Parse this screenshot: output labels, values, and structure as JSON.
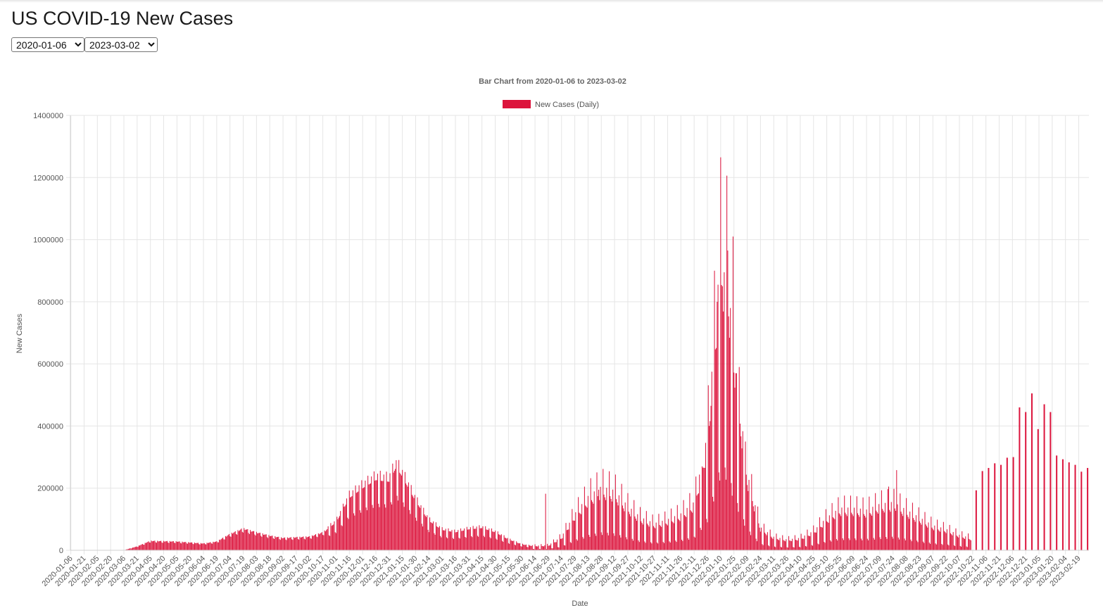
{
  "page": {
    "title": "US COVID-19 New Cases",
    "start_select": {
      "value": "2020-01-06"
    },
    "end_select": {
      "value": "2023-03-02"
    }
  },
  "colors": {
    "bar": "#dc143c",
    "grid": "#e5e5e5",
    "axis_text": "#555555"
  },
  "chart_data": {
    "type": "bar",
    "title": "Bar Chart from 2020-01-06 to 2023-03-02",
    "xlabel": "Date",
    "ylabel": "New Cases",
    "legend": {
      "label": "New Cases (Daily)",
      "position": "top-center"
    },
    "grid": true,
    "ylim": [
      0,
      1400000
    ],
    "y_ticks": [
      0,
      200000,
      400000,
      600000,
      800000,
      1000000,
      1200000,
      1400000
    ],
    "x_range": [
      "2020-01-06",
      "2023-03-02"
    ],
    "x_tick_labels": [
      "2020-01-06",
      "2020-01-21",
      "2020-02-05",
      "2020-02-20",
      "2020-03-06",
      "2020-03-21",
      "2020-04-05",
      "2020-04-20",
      "2020-05-05",
      "2020-05-20",
      "2020-06-04",
      "2020-06-19",
      "2020-07-04",
      "2020-07-19",
      "2020-08-03",
      "2020-08-18",
      "2020-09-02",
      "2020-09-17",
      "2020-10-02",
      "2020-10-17",
      "2020-11-01",
      "2020-11-16",
      "2020-12-01",
      "2020-12-16",
      "2020-12-31",
      "2021-01-15",
      "2021-01-30",
      "2021-02-14",
      "2021-03-01",
      "2021-03-16",
      "2021-03-31",
      "2021-04-15",
      "2021-04-30",
      "2021-05-15",
      "2021-05-30",
      "2021-06-14",
      "2021-06-29",
      "2021-07-14",
      "2021-07-29",
      "2021-08-13",
      "2021-08-28",
      "2021-09-12",
      "2021-09-27",
      "2021-10-12",
      "2021-10-27",
      "2021-11-11",
      "2021-11-26",
      "2021-12-11",
      "2021-12-26",
      "2022-01-10",
      "2022-01-25",
      "2022-02-09",
      "2022-02-24",
      "2022-03-11",
      "2022-03-26",
      "2022-04-10",
      "2022-04-25",
      "2022-05-10",
      "2022-05-25",
      "2022-06-09",
      "2022-06-24",
      "2022-07-09",
      "2022-07-24",
      "2022-08-08",
      "2022-08-23",
      "2022-09-07",
      "2022-09-22",
      "2022-10-07",
      "2022-10-22",
      "2022-11-06",
      "2022-11-21",
      "2022-12-06",
      "2022-12-21",
      "2023-01-05",
      "2023-01-20",
      "2023-02-04",
      "2023-02-19"
    ],
    "daily_trend": [
      [
        "2020-01-06",
        0
      ],
      [
        "2020-03-06",
        300
      ],
      [
        "2020-03-21",
        12000
      ],
      [
        "2020-03-28",
        20000
      ],
      [
        "2020-04-05",
        29000
      ],
      [
        "2020-04-20",
        28000
      ],
      [
        "2020-05-05",
        27000
      ],
      [
        "2020-05-20",
        24000
      ],
      [
        "2020-06-04",
        21000
      ],
      [
        "2020-06-19",
        27000
      ],
      [
        "2020-07-04",
        50000
      ],
      [
        "2020-07-19",
        67000
      ],
      [
        "2020-08-03",
        55000
      ],
      [
        "2020-08-18",
        45000
      ],
      [
        "2020-09-02",
        38000
      ],
      [
        "2020-09-17",
        40000
      ],
      [
        "2020-10-02",
        42000
      ],
      [
        "2020-10-17",
        55000
      ],
      [
        "2020-11-01",
        85000
      ],
      [
        "2020-11-16",
        160000
      ],
      [
        "2020-12-01",
        190000
      ],
      [
        "2020-12-16",
        215000
      ],
      [
        "2020-12-31",
        210000
      ],
      [
        "2021-01-08",
        255000
      ],
      [
        "2021-01-15",
        225000
      ],
      [
        "2021-01-30",
        150000
      ],
      [
        "2021-02-14",
        90000
      ],
      [
        "2021-03-01",
        62000
      ],
      [
        "2021-03-16",
        55000
      ],
      [
        "2021-03-31",
        64000
      ],
      [
        "2021-04-15",
        68000
      ],
      [
        "2021-04-30",
        55000
      ],
      [
        "2021-05-15",
        33000
      ],
      [
        "2021-05-30",
        18000
      ],
      [
        "2021-06-14",
        12000
      ],
      [
        "2021-06-29",
        13000
      ],
      [
        "2021-07-14",
        35000
      ],
      [
        "2021-07-29",
        95000
      ],
      [
        "2021-08-13",
        140000
      ],
      [
        "2021-08-28",
        165000
      ],
      [
        "2021-09-12",
        155000
      ],
      [
        "2021-09-27",
        115000
      ],
      [
        "2021-10-12",
        85000
      ],
      [
        "2021-10-27",
        70000
      ],
      [
        "2021-11-11",
        80000
      ],
      [
        "2021-11-26",
        95000
      ],
      [
        "2021-12-11",
        125000
      ],
      [
        "2021-12-26",
        300000
      ],
      [
        "2022-01-10",
        780000
      ],
      [
        "2022-01-18",
        750000
      ],
      [
        "2022-01-25",
        520000
      ],
      [
        "2022-02-09",
        200000
      ],
      [
        "2022-02-24",
        60000
      ],
      [
        "2022-03-11",
        35000
      ],
      [
        "2022-03-26",
        28000
      ],
      [
        "2022-04-10",
        32000
      ],
      [
        "2022-04-25",
        50000
      ],
      [
        "2022-05-10",
        85000
      ],
      [
        "2022-05-25",
        110000
      ],
      [
        "2022-06-09",
        110000
      ],
      [
        "2022-06-24",
        105000
      ],
      [
        "2022-07-09",
        120000
      ],
      [
        "2022-07-24",
        125000
      ],
      [
        "2022-08-08",
        105000
      ],
      [
        "2022-08-23",
        85000
      ],
      [
        "2022-09-07",
        65000
      ],
      [
        "2022-09-22",
        55000
      ],
      [
        "2022-10-07",
        40000
      ],
      [
        "2022-10-20",
        32000
      ]
    ],
    "spikes": [
      [
        "2020-11-10",
        140000
      ],
      [
        "2021-01-08",
        290000
      ],
      [
        "2021-06-26",
        182000
      ],
      [
        "2021-08-25",
        195000
      ],
      [
        "2021-12-20",
        270000
      ],
      [
        "2021-12-30",
        465000
      ],
      [
        "2022-01-03",
        900000
      ],
      [
        "2022-01-06",
        800000
      ],
      [
        "2022-01-10",
        1265000
      ],
      [
        "2022-01-12",
        850000
      ],
      [
        "2022-01-14",
        895000
      ],
      [
        "2022-01-18",
        965000
      ],
      [
        "2022-01-21",
        780000
      ],
      [
        "2022-01-24",
        1010000
      ],
      [
        "2022-01-27",
        570000
      ],
      [
        "2022-01-31",
        590000
      ],
      [
        "2022-02-07",
        350000
      ],
      [
        "2022-07-19",
        205000
      ],
      [
        "2022-07-28",
        258000
      ]
    ],
    "weekly_reports": [
      [
        "2022-10-26",
        193000
      ],
      [
        "2022-11-02",
        255000
      ],
      [
        "2022-11-09",
        265000
      ],
      [
        "2022-11-16",
        280000
      ],
      [
        "2022-11-23",
        275000
      ],
      [
        "2022-11-30",
        298000
      ],
      [
        "2022-12-07",
        300000
      ],
      [
        "2022-12-14",
        460000
      ],
      [
        "2022-12-21",
        445000
      ],
      [
        "2022-12-28",
        505000
      ],
      [
        "2023-01-04",
        390000
      ],
      [
        "2023-01-11",
        470000
      ],
      [
        "2023-01-18",
        445000
      ],
      [
        "2023-01-25",
        305000
      ],
      [
        "2023-02-01",
        293000
      ],
      [
        "2023-02-08",
        283000
      ],
      [
        "2023-02-15",
        275000
      ],
      [
        "2023-02-22",
        253000
      ],
      [
        "2023-03-01",
        265000
      ]
    ]
  }
}
